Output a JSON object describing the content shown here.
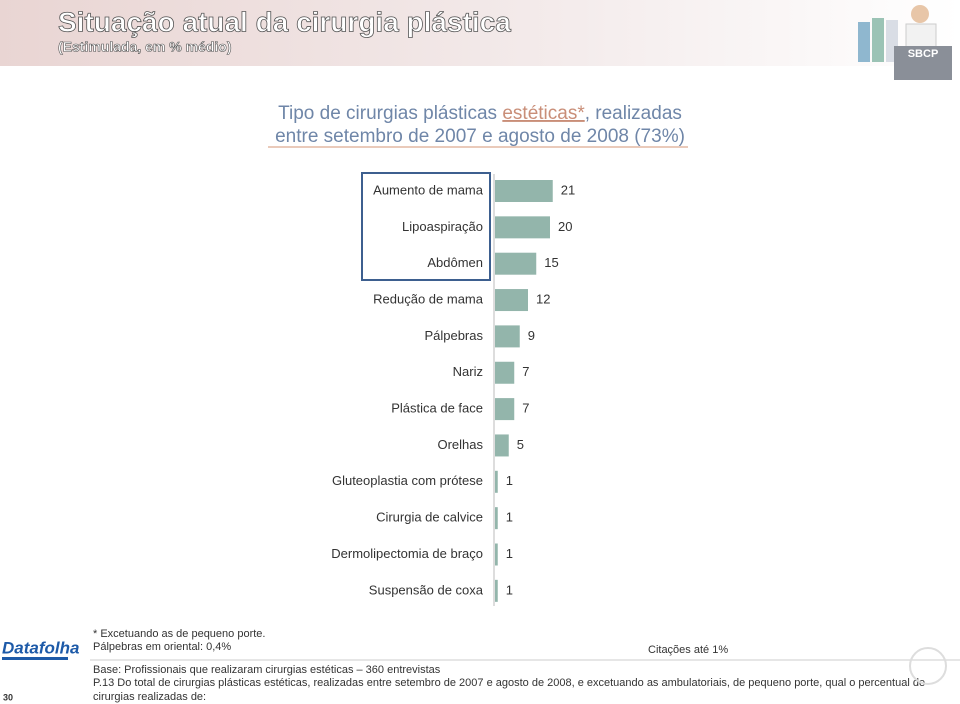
{
  "header": {
    "title": "Situação atual da cirurgia plástica",
    "subtitle": "(Estimulada, em % médio)",
    "logo": "SBCP"
  },
  "chart_data": {
    "type": "bar",
    "orientation": "horizontal",
    "title": {
      "line1": [
        "Tipo de cirurgias plásticas ",
        "estéticas*",
        ", realizadas"
      ],
      "line2": "entre setembro de 2007 e agosto de 2008 (73%)"
    },
    "categories": [
      "Aumento de mama",
      "Lipoaspiração",
      "Abdômen",
      "Redução de mama",
      "Pálpebras",
      "Nariz",
      "Plástica de face",
      "Orelhas",
      "Gluteoplastia com prótese",
      "Cirurgia de calvice",
      "Dermolipectomia de braço",
      "Suspensão de coxa"
    ],
    "values": [
      21,
      20,
      15,
      12,
      9,
      7,
      7,
      5,
      1,
      1,
      1,
      1
    ],
    "color": "#93b5ab"
  },
  "notes": {
    "footnote": "* Excetuando as de pequeno porte.",
    "oriental": "Pálpebras em oriental: 0,4%",
    "citations": "Citações até 1%",
    "base": "Base: Profissionais que realizaram cirurgias estéticas – 360 entrevistas",
    "question": [
      "P.13 Do total de cirurgias plásticas estéticas, realizadas entre setembro de 2007 e agosto de 2008, e excetuando as ambulatoriais, de pequeno porte, qual o percentual de",
      "cirurgias realizadas de:"
    ]
  },
  "footer": {
    "brand": "Datafolha",
    "page": "30"
  }
}
